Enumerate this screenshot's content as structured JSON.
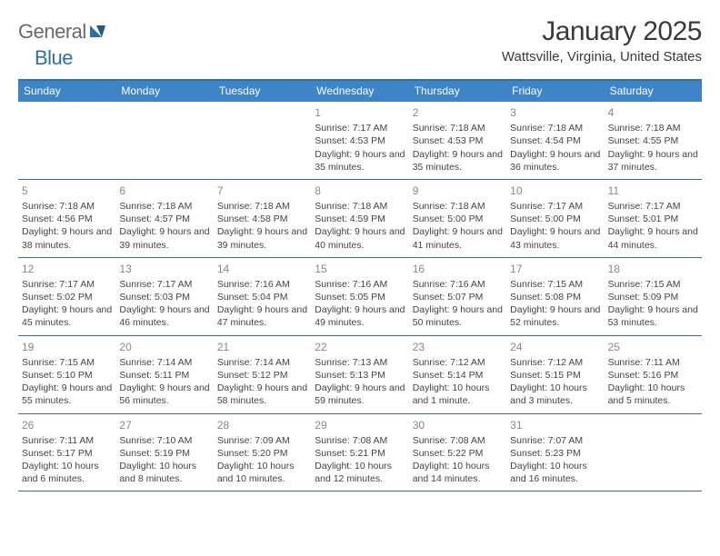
{
  "brand": {
    "general": "General",
    "blue": "Blue"
  },
  "title": "January 2025",
  "location": "Wattsville, Virginia, United States",
  "colors": {
    "header_bar": "#3d85c6",
    "border": "#2f6fa7",
    "text": "#333333",
    "muted": "#888888"
  },
  "dayNames": [
    "Sunday",
    "Monday",
    "Tuesday",
    "Wednesday",
    "Thursday",
    "Friday",
    "Saturday"
  ],
  "weeks": [
    [
      null,
      null,
      null,
      {
        "n": "1",
        "sr": "7:17 AM",
        "ss": "4:53 PM",
        "dl": "9 hours and 35 minutes."
      },
      {
        "n": "2",
        "sr": "7:18 AM",
        "ss": "4:53 PM",
        "dl": "9 hours and 35 minutes."
      },
      {
        "n": "3",
        "sr": "7:18 AM",
        "ss": "4:54 PM",
        "dl": "9 hours and 36 minutes."
      },
      {
        "n": "4",
        "sr": "7:18 AM",
        "ss": "4:55 PM",
        "dl": "9 hours and 37 minutes."
      }
    ],
    [
      {
        "n": "5",
        "sr": "7:18 AM",
        "ss": "4:56 PM",
        "dl": "9 hours and 38 minutes."
      },
      {
        "n": "6",
        "sr": "7:18 AM",
        "ss": "4:57 PM",
        "dl": "9 hours and 39 minutes."
      },
      {
        "n": "7",
        "sr": "7:18 AM",
        "ss": "4:58 PM",
        "dl": "9 hours and 39 minutes."
      },
      {
        "n": "8",
        "sr": "7:18 AM",
        "ss": "4:59 PM",
        "dl": "9 hours and 40 minutes."
      },
      {
        "n": "9",
        "sr": "7:18 AM",
        "ss": "5:00 PM",
        "dl": "9 hours and 41 minutes."
      },
      {
        "n": "10",
        "sr": "7:17 AM",
        "ss": "5:00 PM",
        "dl": "9 hours and 43 minutes."
      },
      {
        "n": "11",
        "sr": "7:17 AM",
        "ss": "5:01 PM",
        "dl": "9 hours and 44 minutes."
      }
    ],
    [
      {
        "n": "12",
        "sr": "7:17 AM",
        "ss": "5:02 PM",
        "dl": "9 hours and 45 minutes."
      },
      {
        "n": "13",
        "sr": "7:17 AM",
        "ss": "5:03 PM",
        "dl": "9 hours and 46 minutes."
      },
      {
        "n": "14",
        "sr": "7:16 AM",
        "ss": "5:04 PM",
        "dl": "9 hours and 47 minutes."
      },
      {
        "n": "15",
        "sr": "7:16 AM",
        "ss": "5:05 PM",
        "dl": "9 hours and 49 minutes."
      },
      {
        "n": "16",
        "sr": "7:16 AM",
        "ss": "5:07 PM",
        "dl": "9 hours and 50 minutes."
      },
      {
        "n": "17",
        "sr": "7:15 AM",
        "ss": "5:08 PM",
        "dl": "9 hours and 52 minutes."
      },
      {
        "n": "18",
        "sr": "7:15 AM",
        "ss": "5:09 PM",
        "dl": "9 hours and 53 minutes."
      }
    ],
    [
      {
        "n": "19",
        "sr": "7:15 AM",
        "ss": "5:10 PM",
        "dl": "9 hours and 55 minutes."
      },
      {
        "n": "20",
        "sr": "7:14 AM",
        "ss": "5:11 PM",
        "dl": "9 hours and 56 minutes."
      },
      {
        "n": "21",
        "sr": "7:14 AM",
        "ss": "5:12 PM",
        "dl": "9 hours and 58 minutes."
      },
      {
        "n": "22",
        "sr": "7:13 AM",
        "ss": "5:13 PM",
        "dl": "9 hours and 59 minutes."
      },
      {
        "n": "23",
        "sr": "7:12 AM",
        "ss": "5:14 PM",
        "dl": "10 hours and 1 minute."
      },
      {
        "n": "24",
        "sr": "7:12 AM",
        "ss": "5:15 PM",
        "dl": "10 hours and 3 minutes."
      },
      {
        "n": "25",
        "sr": "7:11 AM",
        "ss": "5:16 PM",
        "dl": "10 hours and 5 minutes."
      }
    ],
    [
      {
        "n": "26",
        "sr": "7:11 AM",
        "ss": "5:17 PM",
        "dl": "10 hours and 6 minutes."
      },
      {
        "n": "27",
        "sr": "7:10 AM",
        "ss": "5:19 PM",
        "dl": "10 hours and 8 minutes."
      },
      {
        "n": "28",
        "sr": "7:09 AM",
        "ss": "5:20 PM",
        "dl": "10 hours and 10 minutes."
      },
      {
        "n": "29",
        "sr": "7:08 AM",
        "ss": "5:21 PM",
        "dl": "10 hours and 12 minutes."
      },
      {
        "n": "30",
        "sr": "7:08 AM",
        "ss": "5:22 PM",
        "dl": "10 hours and 14 minutes."
      },
      {
        "n": "31",
        "sr": "7:07 AM",
        "ss": "5:23 PM",
        "dl": "10 hours and 16 minutes."
      },
      null
    ]
  ],
  "labels": {
    "sunrise": "Sunrise: ",
    "sunset": "Sunset: ",
    "daylight": "Daylight: "
  }
}
